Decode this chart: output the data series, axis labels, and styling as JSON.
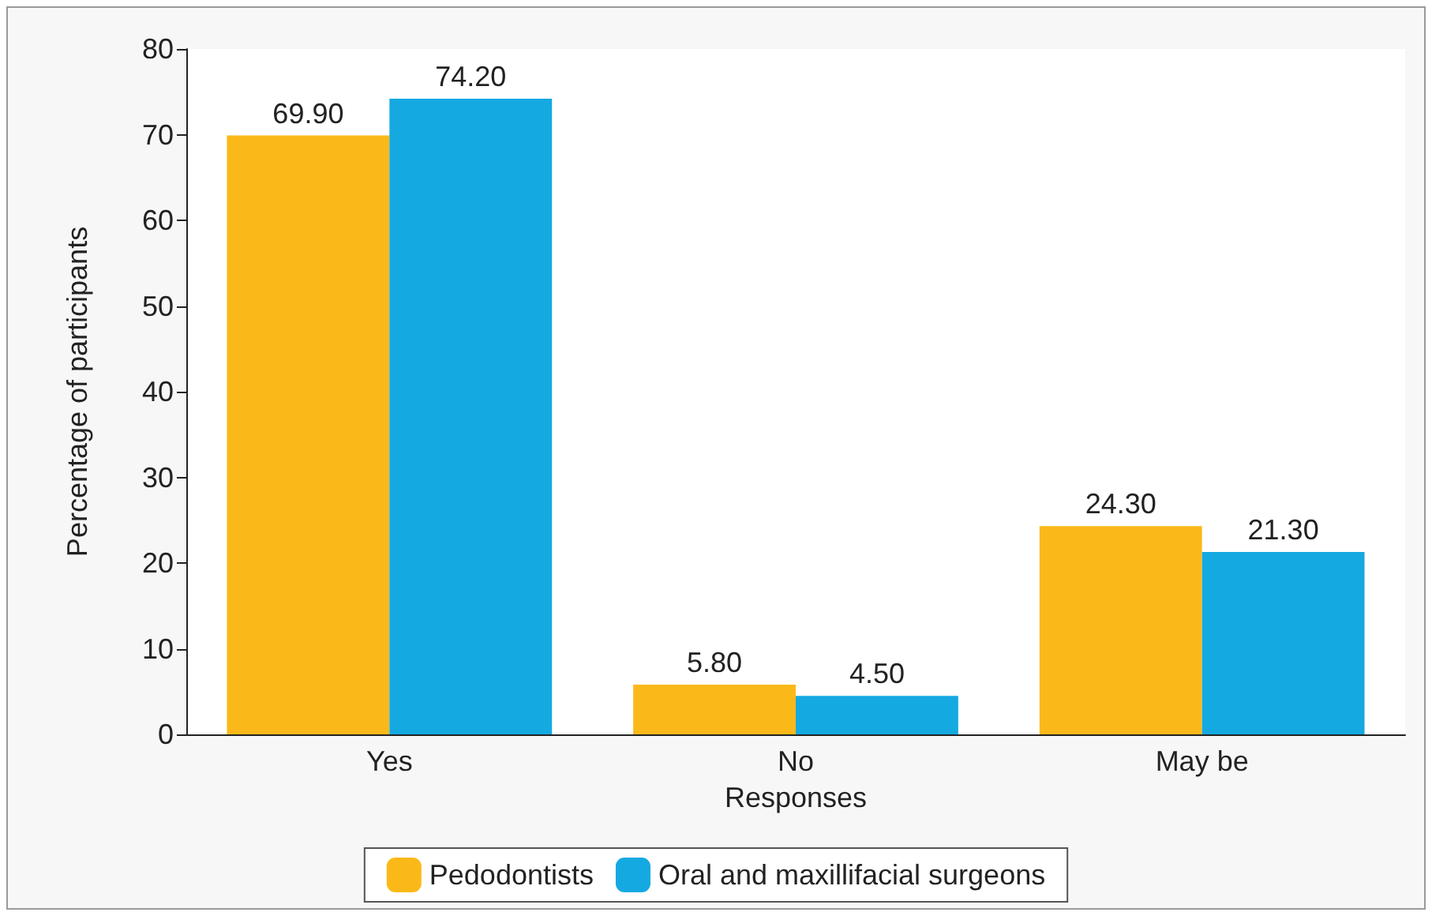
{
  "chart_data": {
    "type": "bar",
    "xlabel": "Responses",
    "ylabel": "Percentage of participants",
    "categories": [
      "Yes",
      "No",
      "May be"
    ],
    "series": [
      {
        "name": "Pedodontists",
        "color": "#fbb919",
        "values": [
          69.9,
          5.8,
          24.3
        ],
        "value_labels": [
          "69.90",
          "5.80",
          "24.30"
        ]
      },
      {
        "name": "Oral and maxillifacial surgeons",
        "color": "#15a9e1",
        "values": [
          74.2,
          4.5,
          21.3
        ],
        "value_labels": [
          "74.20",
          "4.50",
          "21.30"
        ]
      }
    ],
    "ylim": [
      0,
      80
    ],
    "yticks": [
      0,
      10,
      20,
      30,
      40,
      50,
      60,
      70,
      80
    ],
    "grid": false,
    "legend": "bottom"
  }
}
